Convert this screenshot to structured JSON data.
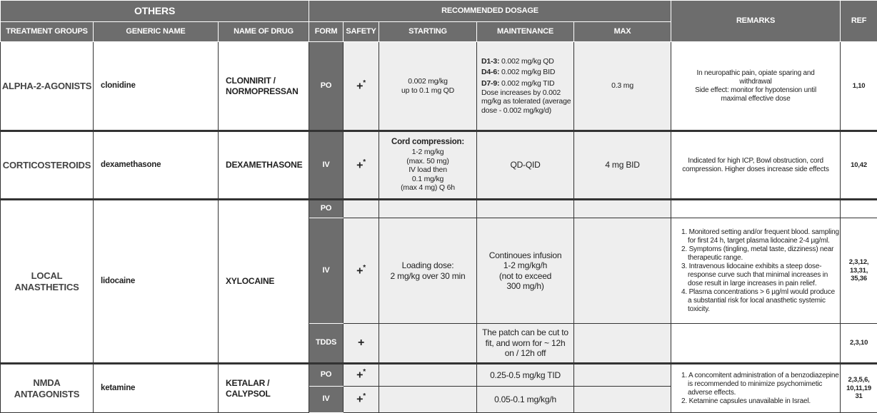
{
  "header": {
    "others": "OTHERS",
    "recommended_dosage": "RECOMMENDED DOSAGE",
    "remarks": "REMARKS",
    "ref": "REF",
    "columns": [
      "TREATMENT GROUPS",
      "GENERIC NAME",
      "NAME OF DRUG",
      "FORM",
      "SAFETY",
      "STARTING",
      "MAINTENANCE",
      "MAX"
    ]
  },
  "rows": [
    {
      "group": "ALPHA-2-AGONISTS",
      "generic": "clonidine",
      "drug": "CLONNIRIT / NORMOPRESSAN",
      "form": "PO",
      "safety": "+",
      "safety_mark": "*",
      "starting": "0.002 mg/kg\nup to 0.1 mg QD",
      "maintenance": [
        {
          "label": "D1-3:",
          "text": " 0.002 mg/kg  QD"
        },
        {
          "label": "D4-6:",
          "text": " 0.002 mg/kg  BID"
        },
        {
          "label": "D7-9:",
          "text": " 0.002 mg/kg  TID"
        }
      ],
      "maintenance_note": "Dose increases by 0.002 mg/kg as tolerated (average dose - 0.002 mg/kg/d)",
      "max": "0.3 mg",
      "remarks": "In neuropathic pain, opiate sparing and withdrawal\nSide effect: monitor for hypotension until maximal effective dose",
      "ref": "1,10"
    },
    {
      "group": "CORTICOSTEROIDS",
      "generic": "dexamethasone",
      "drug": "DEXAMETHASONE",
      "form": "IV",
      "safety": "+",
      "safety_mark": "*",
      "starting_label": "Cord compression:",
      "starting": "1-2 mg/kg\n(max. 50 mg)\nIV load then\n0.1 mg/kg\n(max 4 mg)  Q 6h",
      "maintenance": "QD-QID",
      "max": "4 mg BID",
      "remarks": "Indicated for high ICP, Bowl obstruction, cord compression. Higher doses increase side effects",
      "ref": "10,42"
    },
    {
      "group": "LOCAL ANASTHETICS",
      "generic": "lidocaine",
      "drug": "XYLOCAINE",
      "sub": [
        {
          "form": "PO"
        },
        {
          "form": "IV",
          "safety": "+",
          "safety_mark": "*",
          "starting": "Loading dose:\n2 mg/kg over 30 min",
          "maintenance": "Continoues infusion\n1-2 mg/kg/h\n(not to exceed\n300 mg/h)",
          "remarks": [
            "1. Monitored setting and/or frequent blood. sampling for first 24 h, target plasma lidocaine 2-4 µg/ml.",
            "2. Symptoms (tingling, metal taste, dizziness) near therapeutic range.",
            "3. Intravenous lidocaine exhibits a steep dose-response curve such that minimal increases in dose result in large increases in pain relief.",
            "4. Plasma concentrations > 6 µg/ml would produce a substantial risk for local anasthetic systemic toxicity."
          ],
          "ref": "2,3,12,\n13,31,\n35,36"
        },
        {
          "form": "TDDS",
          "safety": "+",
          "maintenance": "The patch can be cut to fit, and worn for ~ 12h on / 12h off",
          "ref": "2,3,10"
        }
      ]
    },
    {
      "group": "NMDA ANTAGONISTS",
      "generic": "ketamine",
      "drug": "KETALAR / CALYPSOL",
      "sub": [
        {
          "form": "PO",
          "safety": "+",
          "safety_mark": "*",
          "maintenance": "0.25-0.5 mg/kg  TID"
        },
        {
          "form": "IV",
          "safety": "+",
          "safety_mark": "*",
          "maintenance": "0.05-0.1 mg/kg/h"
        }
      ],
      "remarks": [
        "1. A concomitent administration of a benzodiazepine is recommended to minimize psychomimetic adverse effects.",
        "2. Ketamine capsules unavailable in Israel."
      ],
      "ref": "2,3,5,6,\n10,11,19\n31"
    }
  ]
}
